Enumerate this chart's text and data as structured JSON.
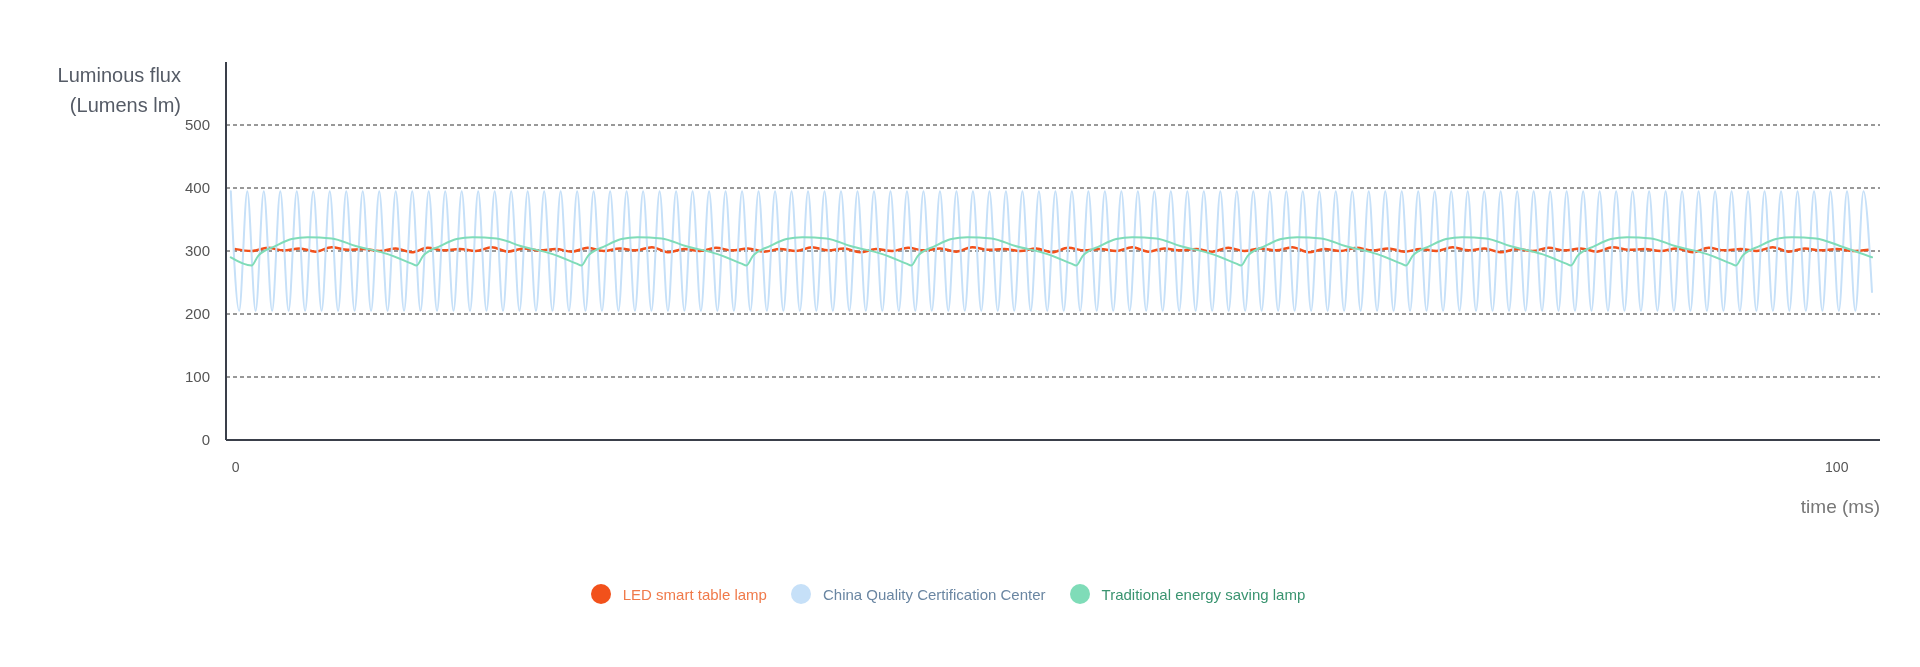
{
  "chart_data": {
    "type": "line",
    "xlabel": "time (ms)",
    "ylabel": "Luminous flux (Lumens lm)",
    "xlim": [
      -0.6,
      102.7
    ],
    "xticks": [
      0,
      100
    ],
    "ylim": [
      0,
      600
    ],
    "yticks": [
      0,
      100,
      200,
      300,
      400,
      500
    ],
    "grid": "y",
    "legend": "bottom",
    "line_style": "solid",
    "x": [
      0,
      1,
      2,
      3,
      4,
      5,
      6,
      7,
      8,
      9,
      10,
      11,
      12,
      13,
      14,
      15,
      16,
      17,
      18,
      19,
      20,
      21,
      22,
      23,
      24,
      25,
      26,
      27,
      28,
      29,
      30,
      31,
      32,
      33,
      34,
      35,
      36,
      37,
      38,
      39,
      40,
      41,
      42,
      43,
      44,
      45,
      46,
      47,
      48,
      49,
      50,
      51,
      52,
      53,
      54,
      55,
      56,
      57,
      58,
      59,
      60,
      61,
      62,
      63,
      64,
      65,
      66,
      67,
      68,
      69,
      70,
      71,
      72,
      73,
      74,
      75,
      76,
      77,
      78,
      79,
      80,
      81,
      82,
      83,
      84,
      85,
      86,
      87,
      88,
      89,
      90,
      91,
      92,
      93,
      94,
      95,
      96,
      97,
      98,
      99,
      100,
      101,
      102
    ],
    "series": [
      {
        "name": "LED smart table lamp",
        "color": "#f2511b",
        "values": [
          303,
          300,
          305,
          301,
          304,
          299,
          306,
          302,
          303,
          300,
          304,
          298,
          305,
          301,
          303,
          300,
          306,
          299,
          304,
          301,
          303,
          299,
          305,
          300,
          304,
          301,
          306,
          298,
          303,
          300,
          305,
          301,
          304,
          299,
          303,
          300,
          306,
          301,
          304,
          298,
          303,
          300,
          305,
          301,
          304,
          299,
          306,
          302,
          303,
          300,
          304,
          298,
          305,
          301,
          303,
          300,
          306,
          299,
          304,
          301,
          303,
          299,
          305,
          300,
          304,
          301,
          306,
          298,
          303,
          300,
          305,
          301,
          304,
          299,
          303,
          300,
          306,
          301,
          304,
          298,
          303,
          300,
          305,
          301,
          304,
          299,
          306,
          302,
          303,
          300,
          304,
          298,
          305,
          301,
          303,
          300,
          306,
          299,
          304,
          301,
          303,
          300,
          302
        ]
      },
      {
        "name": "China Quality Certification Center",
        "color": "#c6e0f8",
        "x": [
          -0.3,
          0.22,
          0.73,
          1.25,
          1.76,
          2.28,
          2.79,
          3.31,
          3.82,
          4.34,
          4.85,
          5.37,
          5.88,
          6.4,
          6.91,
          7.43,
          7.94,
          8.46,
          8.97,
          9.49,
          10,
          10.52,
          11.03,
          11.55,
          12.06,
          12.58,
          13.09,
          13.61,
          14.12,
          14.64,
          15.15,
          15.67,
          16.18,
          16.7,
          17.21,
          17.73,
          18.24,
          18.76,
          19.27,
          19.79,
          20.3,
          20.82,
          21.33,
          21.85,
          22.36,
          22.88,
          23.39,
          23.91,
          24.42,
          24.94,
          25.45,
          25.97,
          26.48,
          27,
          27.51,
          28.03,
          28.54,
          29.06,
          29.57,
          30.09,
          30.6,
          31.12,
          31.63,
          32.15,
          32.66,
          33.18,
          33.69,
          34.21,
          34.72,
          35.24,
          35.75,
          36.27,
          36.78,
          37.3,
          37.81,
          38.33,
          38.84,
          39.36,
          39.87,
          40.39,
          40.9,
          41.42,
          41.93,
          42.45,
          42.96,
          43.48,
          43.99,
          44.51,
          45.02,
          45.54,
          46.05,
          46.57,
          47.08,
          47.6,
          48.11,
          48.63,
          49.14,
          49.66,
          50.17,
          50.69,
          51.2,
          51.72,
          52.23,
          52.75,
          53.26,
          53.78,
          54.29,
          54.81,
          55.32,
          55.84,
          56.35,
          56.87,
          57.38,
          57.9,
          58.41,
          58.93,
          59.44,
          59.96,
          60.47,
          60.99,
          61.5,
          62.02,
          62.53,
          63.05,
          63.56,
          64.08,
          64.59,
          65.11,
          65.62,
          66.14,
          66.65,
          67.17,
          67.68,
          68.2,
          68.71,
          69.23,
          69.74,
          70.26,
          70.77,
          71.29,
          71.8,
          72.32,
          72.83,
          73.35,
          73.86,
          74.38,
          74.89,
          75.41,
          75.92,
          76.44,
          76.95,
          77.47,
          77.98,
          78.5,
          79.01,
          79.53,
          80.04,
          80.56,
          81.07,
          81.59,
          82.1,
          82.62,
          83.13,
          83.65,
          84.16,
          84.68,
          85.19,
          85.71,
          86.22,
          86.74,
          87.25,
          87.77,
          88.28,
          88.8,
          89.31,
          89.83,
          90.34,
          90.86,
          91.37,
          91.89,
          92.4,
          92.92,
          93.43,
          93.95,
          94.46,
          94.98,
          95.49,
          96.01,
          96.52,
          97.04,
          97.55,
          98.07,
          98.58,
          99.1,
          99.61,
          100.13,
          100.64,
          101.16,
          101.67,
          102.2
        ],
        "values": [
          395,
          205,
          395,
          205,
          395,
          205,
          395,
          205,
          395,
          205,
          395,
          205,
          395,
          205,
          395,
          205,
          395,
          205,
          395,
          205,
          395,
          205,
          395,
          205,
          395,
          205,
          395,
          205,
          395,
          205,
          395,
          205,
          395,
          205,
          395,
          205,
          395,
          205,
          395,
          205,
          395,
          205,
          395,
          205,
          395,
          205,
          395,
          205,
          395,
          205,
          395,
          205,
          395,
          205,
          395,
          205,
          395,
          205,
          395,
          205,
          395,
          205,
          395,
          205,
          395,
          205,
          395,
          205,
          395,
          205,
          395,
          205,
          395,
          205,
          395,
          205,
          395,
          205,
          395,
          205,
          395,
          205,
          395,
          205,
          395,
          205,
          395,
          205,
          395,
          205,
          395,
          205,
          395,
          205,
          395,
          205,
          395,
          205,
          395,
          205,
          395,
          205,
          395,
          205,
          395,
          205,
          395,
          205,
          395,
          205,
          395,
          205,
          395,
          205,
          395,
          205,
          395,
          205,
          395,
          205,
          395,
          205,
          395,
          205,
          395,
          205,
          395,
          205,
          395,
          205,
          395,
          205,
          395,
          205,
          395,
          205,
          395,
          205,
          395,
          205,
          395,
          205,
          395,
          205,
          395,
          205,
          395,
          205,
          395,
          205,
          395,
          205,
          395,
          205,
          395,
          205,
          395,
          205,
          395,
          205,
          395,
          205,
          395,
          205,
          395,
          205,
          395,
          205,
          395,
          205,
          395,
          205,
          395,
          205,
          395,
          205,
          395,
          205,
          395,
          205,
          395,
          205,
          395,
          205,
          395,
          205,
          395,
          205,
          395,
          205,
          395,
          205,
          395,
          205,
          395,
          205,
          395,
          205,
          395,
          235
        ]
      },
      {
        "name": "Traditional energy saving lamp",
        "color": "#7fdcb8",
        "x": [
          -0.3,
          1.0,
          1.4,
          2.5,
          3.5,
          4.5,
          6.0,
          7.5,
          9.5,
          11.0,
          11.3,
          11.7,
          12.8,
          13.8,
          14.8,
          16.3,
          17.8,
          19.8,
          21.3,
          21.6,
          22,
          23.1,
          24.1,
          25.1,
          26.6,
          28.1,
          30.1,
          31.6,
          31.9,
          32.3,
          33.4,
          34.4,
          35.4,
          36.9,
          38.4,
          40.4,
          41.9,
          42.2,
          42.6,
          43.7,
          44.7,
          45.7,
          47.2,
          48.7,
          50.7,
          52.2,
          52.5,
          52.9,
          54,
          55,
          56,
          57.5,
          59,
          61,
          62.5,
          62.8,
          63.2,
          64.3,
          65.3,
          66.3,
          67.8,
          69.3,
          71.3,
          72.8,
          73.1,
          73.5,
          74.6,
          75.6,
          76.6,
          78.1,
          79.6,
          81.6,
          83.1,
          83.4,
          83.8,
          84.9,
          85.9,
          86.9,
          88.4,
          89.9,
          91.9,
          93.4,
          93.7,
          94.1,
          95.2,
          96.2,
          97.2,
          98.7,
          100.2,
          102.2
        ],
        "values": [
          290,
          277,
          292,
          308,
          319,
          322,
          320,
          308,
          295,
          280,
          277,
          292,
          308,
          319,
          322,
          320,
          308,
          295,
          280,
          277,
          292,
          308,
          319,
          322,
          320,
          308,
          295,
          280,
          277,
          292,
          308,
          319,
          322,
          320,
          308,
          295,
          280,
          277,
          292,
          308,
          319,
          322,
          320,
          308,
          295,
          280,
          277,
          292,
          308,
          319,
          322,
          320,
          308,
          295,
          280,
          277,
          292,
          308,
          319,
          322,
          320,
          308,
          295,
          280,
          277,
          292,
          308,
          319,
          322,
          320,
          308,
          295,
          280,
          277,
          292,
          308,
          319,
          322,
          320,
          308,
          295,
          280,
          277,
          292,
          308,
          319,
          322,
          320,
          308,
          290
        ]
      }
    ]
  }
}
